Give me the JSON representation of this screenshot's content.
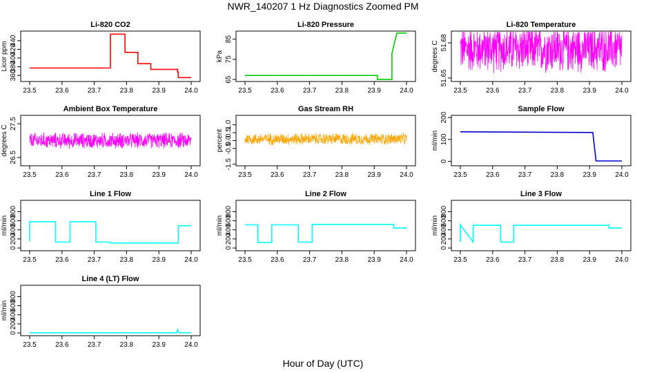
{
  "figure": {
    "title": "NWR_140207  1 Hz Diagnostics Zoomed PM",
    "xlabel": "Hour of Day (UTC)"
  },
  "chart_data": [
    {
      "id": "co2",
      "type": "line",
      "title": "Li-820 CO2",
      "ylabel": "Licor ppm",
      "color": "#ff0000",
      "xlim": [
        23.5,
        24.0
      ],
      "ylim": [
        346,
        462
      ],
      "xticks": [
        "23.5",
        "23.6",
        "23.7",
        "23.8",
        "23.9",
        "24.0"
      ],
      "yticks": [
        "360",
        "380",
        "400",
        "420",
        "440"
      ],
      "series": [
        {
          "x": [
            23.5,
            23.75,
            23.75,
            23.795,
            23.795,
            23.835,
            23.835,
            23.875,
            23.875,
            23.958,
            23.958,
            23.96,
            23.96,
            24.0
          ],
          "y": [
            377,
            377,
            455,
            455,
            413,
            413,
            387,
            387,
            374,
            374,
            368,
            368,
            355,
            355
          ]
        }
      ]
    },
    {
      "id": "pressure",
      "type": "line",
      "title": "Li-820 Pressure",
      "ylabel": "kPa",
      "color": "#00cc00",
      "xlim": [
        23.5,
        24.0
      ],
      "ylim": [
        64,
        89
      ],
      "xticks": [
        "23.5",
        "23.6",
        "23.7",
        "23.8",
        "23.9",
        "24.0"
      ],
      "yticks": [
        "65",
        "75",
        "85"
      ],
      "series": [
        {
          "x": [
            23.5,
            23.91,
            23.91,
            23.955,
            23.955,
            23.97,
            23.97,
            24.0
          ],
          "y": [
            67,
            67,
            65,
            65,
            78,
            88,
            88,
            88
          ]
        }
      ]
    },
    {
      "id": "licor_temp",
      "type": "line",
      "title": "Li-820 Temperature",
      "ylabel": "degrees C",
      "color": "#ff00ff",
      "xlim": [
        23.5,
        24.0
      ],
      "ylim": [
        51.647,
        51.69
      ],
      "xticks": [
        "23.5",
        "23.6",
        "23.7",
        "23.8",
        "23.9",
        "24.0"
      ],
      "yticks": [
        "51.65",
        "51.68"
      ],
      "series": [
        {
          "x": [
            23.5,
            24.0
          ],
          "y": [
            51.675,
            51.675
          ],
          "noise": 0.019
        }
      ]
    },
    {
      "id": "box_temp",
      "type": "line",
      "title": "Ambient Box Temperature",
      "ylabel": "degrees C",
      "color": "#ff00ff",
      "xlim": [
        23.5,
        24.0
      ],
      "ylim": [
        26.25,
        27.75
      ],
      "xticks": [
        "23.5",
        "23.6",
        "23.7",
        "23.8",
        "23.9",
        "24.0"
      ],
      "yticks": [
        "26.5",
        "27.5"
      ],
      "series": [
        {
          "x": [
            23.5,
            24.0
          ],
          "y": [
            27.0,
            27.0
          ],
          "noise": 0.22
        }
      ]
    },
    {
      "id": "rh",
      "type": "line",
      "title": "Gas Stream RH",
      "ylabel": "percent",
      "color": "#ffa500",
      "xlim": [
        23.5,
        24.0
      ],
      "ylim": [
        -1.6,
        1.6
      ],
      "xticks": [
        "23.5",
        "23.6",
        "23.7",
        "23.8",
        "23.9",
        "24.0"
      ],
      "yticks": [
        "-1.5",
        "-0.5",
        "0.0",
        "0.5",
        "1.0"
      ],
      "series": [
        {
          "x": [
            23.5,
            24.0
          ],
          "y": [
            0.1,
            0.1
          ],
          "noise": 0.35
        }
      ]
    },
    {
      "id": "sample_flow",
      "type": "line",
      "title": "Sample Flow",
      "ylabel": "ml/min",
      "color": "#0000cc",
      "xlim": [
        23.5,
        24.0
      ],
      "ylim": [
        -20,
        210
      ],
      "xticks": [
        "23.5",
        "23.6",
        "23.7",
        "23.8",
        "23.9",
        "24.0"
      ],
      "yticks": [
        "0",
        "100",
        "200"
      ],
      "series": [
        {
          "x": [
            23.5,
            23.91,
            23.92,
            24.0
          ],
          "y": [
            135,
            132,
            2,
            2
          ]
        }
      ]
    },
    {
      "id": "line1",
      "type": "line",
      "title": "Line 1 Flow",
      "ylabel": "ml/min",
      "color": "#00ffff",
      "xlim": [
        23.5,
        24.0
      ],
      "ylim": [
        -60,
        1050
      ],
      "xticks": [
        "23.5",
        "23.6",
        "23.7",
        "23.8",
        "23.9",
        "24.0"
      ],
      "yticks": [
        "0",
        "200",
        "400",
        "600",
        "800"
      ],
      "series": [
        {
          "x": [
            23.5,
            23.5,
            23.58,
            23.58,
            23.625,
            23.625,
            23.705,
            23.705,
            23.75,
            23.75,
            23.96,
            23.96,
            24.0
          ],
          "y": [
            150,
            580,
            580,
            130,
            130,
            580,
            580,
            130,
            130,
            110,
            110,
            490,
            490
          ]
        }
      ]
    },
    {
      "id": "line2",
      "type": "line",
      "title": "Line 2 Flow",
      "ylabel": "ml/min",
      "color": "#00ffff",
      "xlim": [
        23.5,
        24.0
      ],
      "ylim": [
        -60,
        1050
      ],
      "xticks": [
        "23.5",
        "23.6",
        "23.7",
        "23.8",
        "23.9",
        "24.0"
      ],
      "yticks": [
        "0",
        "200",
        "400",
        "600",
        "800"
      ],
      "series": [
        {
          "x": [
            23.5,
            23.54,
            23.54,
            23.583,
            23.583,
            23.665,
            23.665,
            23.708,
            23.708,
            23.96,
            23.96,
            24.0
          ],
          "y": [
            510,
            510,
            120,
            120,
            510,
            510,
            130,
            130,
            520,
            520,
            440,
            440
          ]
        }
      ]
    },
    {
      "id": "line3",
      "type": "line",
      "title": "Line 3 Flow",
      "ylabel": "ml/min",
      "color": "#00ffff",
      "xlim": [
        23.5,
        24.0
      ],
      "ylim": [
        -60,
        1050
      ],
      "xticks": [
        "23.5",
        "23.6",
        "23.7",
        "23.8",
        "23.9",
        "24.0"
      ],
      "yticks": [
        "0",
        "200",
        "400",
        "600",
        "800"
      ],
      "series": [
        {
          "x": [
            23.5,
            23.5,
            23.54,
            23.54,
            23.625,
            23.625,
            23.665,
            23.665,
            23.96,
            23.96,
            24.0
          ],
          "y": [
            130,
            510,
            130,
            500,
            500,
            130,
            130,
            500,
            500,
            440,
            440
          ]
        }
      ]
    },
    {
      "id": "line4",
      "type": "line",
      "title": "Line 4 (LT) Flow",
      "ylabel": "ml/min",
      "color": "#00ffff",
      "xlim": [
        23.5,
        24.0
      ],
      "ylim": [
        -60,
        1050
      ],
      "xticks": [
        "23.5",
        "23.6",
        "23.7",
        "23.8",
        "23.9",
        "24.0"
      ],
      "yticks": [
        "0",
        "200",
        "400",
        "600",
        "800"
      ],
      "series": [
        {
          "x": [
            23.5,
            23.955,
            23.958,
            23.962,
            24.0
          ],
          "y": [
            5,
            5,
            70,
            5,
            5
          ]
        }
      ]
    }
  ]
}
